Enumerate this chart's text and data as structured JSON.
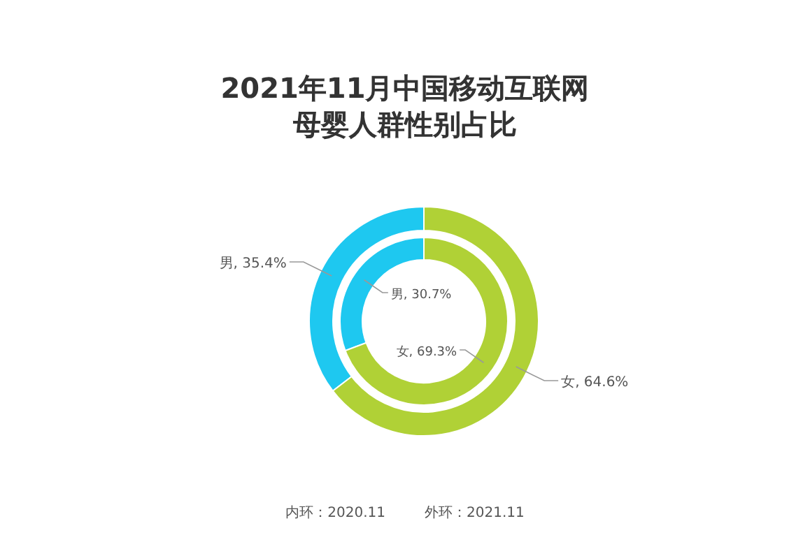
{
  "chart_data": {
    "type": "donut",
    "title": "2021年11月中国移动互联网",
    "subtitle": "母婴人群性别占比",
    "categories": [
      "男",
      "女"
    ],
    "series": [
      {
        "colors": [
          "#1ec8f0",
          "#b0d136"
        ],
        "values": [
          30.7,
          69.3
        ],
        "value_labels": [
          ", 30.7%",
          ", 69.3%"
        ]
      },
      {
        "colors": [
          "#1ec8f0",
          "#b0d136"
        ],
        "values": [
          35.4,
          64.6
        ],
        "value_labels": [
          ", 35.4%",
          ", 64.6%"
        ]
      }
    ],
    "annotations": [
      "内环：2020.11",
      "外环：2021.11"
    ]
  }
}
